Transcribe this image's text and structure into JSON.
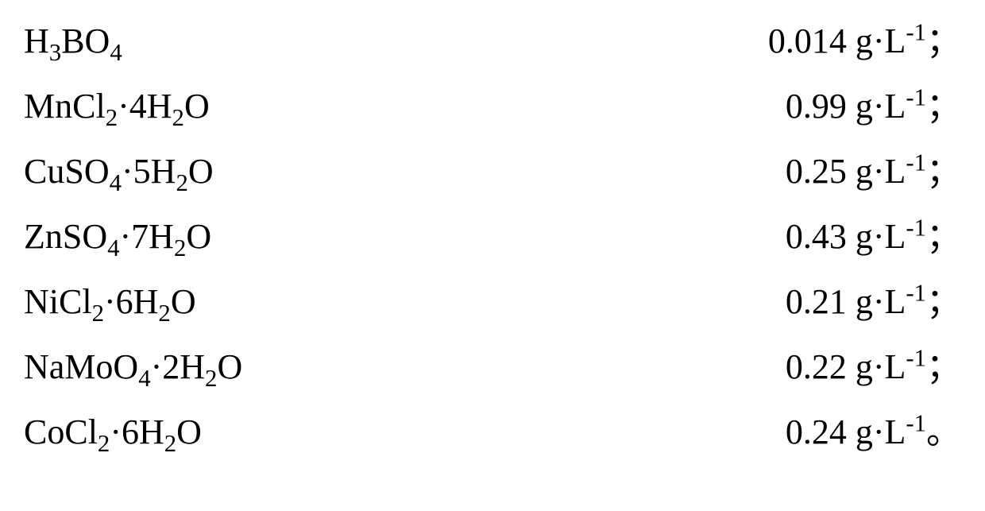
{
  "text_color": "#000000",
  "background_color": "#ffffff",
  "font_family": "Times New Roman",
  "font_size_pt": 33,
  "unit_prefix": "g·L",
  "unit_exp": "-1",
  "rows": [
    {
      "formula_html": "H<sub>3</sub>BO<sub>4</sub>",
      "value": "0.014",
      "terminator": "；"
    },
    {
      "formula_html": "MnCl<sub>2</sub>·4H<sub>2</sub>O",
      "value": "0.99",
      "terminator": "；"
    },
    {
      "formula_html": "CuSO<sub>4</sub>·5H<sub>2</sub>O",
      "value": "0.25",
      "terminator": "；"
    },
    {
      "formula_html": "ZnSO<sub>4</sub>·7H<sub>2</sub>O",
      "value": "0.43",
      "terminator": "；"
    },
    {
      "formula_html": "NiCl<sub>2</sub>·6H<sub>2</sub>O",
      "value": "0.21",
      "terminator": "；"
    },
    {
      "formula_html": "NaMoO<sub>4</sub>·2H<sub>2</sub>O",
      "value": "0.22",
      "terminator": "；"
    },
    {
      "formula_html": "CoCl<sub>2</sub>·6H<sub>2</sub>O",
      "value": "0.24",
      "terminator": "。"
    }
  ]
}
